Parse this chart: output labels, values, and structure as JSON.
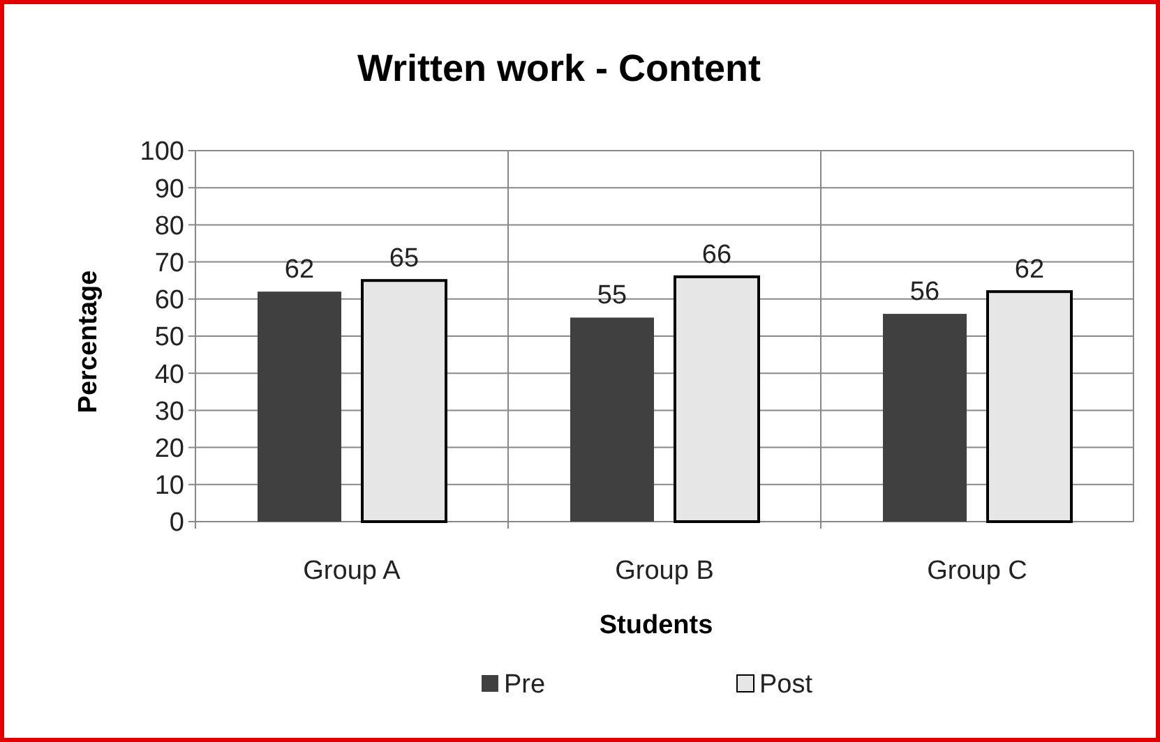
{
  "chart_data": {
    "type": "bar",
    "title": "Written work - Content",
    "xlabel": "Students",
    "ylabel": "Percentage",
    "categories": [
      "Group A",
      "Group B",
      "Group C"
    ],
    "series": [
      {
        "name": "Pre",
        "color": "#404040",
        "values": [
          62,
          55,
          56
        ]
      },
      {
        "name": "Post",
        "color": "#e6e6e6",
        "values": [
          65,
          66,
          62
        ]
      }
    ],
    "ylim": [
      0,
      100
    ],
    "yticks": [
      0,
      10,
      20,
      30,
      40,
      50,
      60,
      70,
      80,
      90,
      100
    ],
    "grid": true,
    "legend": "bottom",
    "data_labels": true
  }
}
